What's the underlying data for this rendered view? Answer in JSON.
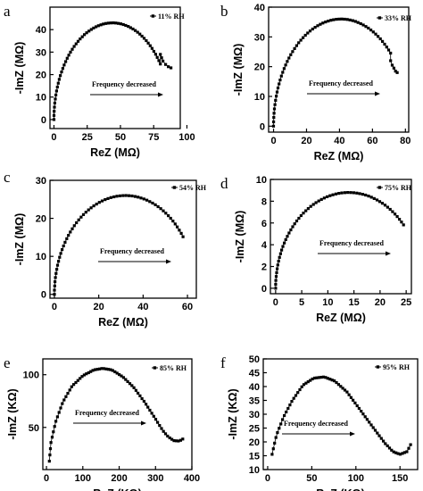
{
  "chart_data": [
    {
      "panel": "a",
      "type": "scatter",
      "legend": "11% RH",
      "xlabel": "ReZ (MΩ)",
      "ylabel": "-ImZ (MΩ)",
      "xticks": [
        0,
        25,
        50,
        75,
        100
      ],
      "yticks": [
        0,
        10,
        20,
        30,
        40
      ],
      "xlim": [
        -3,
        95
      ],
      "ylim": [
        -4,
        50
      ],
      "annotation": "Frequency decreased",
      "series": [
        {
          "name": "11% RH",
          "arc": {
            "center": 44,
            "radius": 44,
            "x_start": 0,
            "x_end": 80,
            "peak": 43
          },
          "tail": [
            [
              80,
              29
            ],
            [
              81,
              27.5
            ],
            [
              82,
              26
            ],
            [
              84,
              24.5
            ],
            [
              86,
              23.5
            ],
            [
              88,
              23
            ]
          ]
        }
      ]
    },
    {
      "panel": "b",
      "type": "scatter",
      "legend": "33% RH",
      "xlabel": "ReZ (MΩ)",
      "ylabel": "-ImZ (MΩ)",
      "xticks": [
        0,
        20,
        40,
        60,
        80
      ],
      "yticks": [
        0,
        10,
        20,
        30,
        40
      ],
      "xlim": [
        -3,
        82
      ],
      "ylim": [
        -2,
        40
      ],
      "annotation": "Frequency decreased",
      "series": [
        {
          "name": "33% RH",
          "arc": {
            "center": 41,
            "radius": 41,
            "x_start": 0,
            "x_end": 71,
            "peak": 36
          },
          "tail": [
            [
              71,
              22
            ],
            [
              72,
              20.5
            ],
            [
              73,
              19.5
            ],
            [
              74,
              18.5
            ],
            [
              75,
              18
            ]
          ]
        }
      ]
    },
    {
      "panel": "c",
      "type": "scatter",
      "legend": "54% RH",
      "xlabel": "ReZ (MΩ)",
      "ylabel": "-ImZ (MΩ)",
      "xticks": [
        0,
        20,
        40,
        60
      ],
      "yticks": [
        0,
        10,
        20,
        30
      ],
      "xlim": [
        -2,
        64
      ],
      "ylim": [
        -1,
        30
      ],
      "annotation": "Frequency decreased",
      "series": [
        {
          "name": "54% RH",
          "arc": {
            "center": 32,
            "radius": 32,
            "x_start": 0,
            "x_end": 58,
            "peak": 26
          },
          "tail": []
        }
      ]
    },
    {
      "panel": "d",
      "type": "scatter",
      "legend": "75% RH",
      "xlabel": "ReZ (MΩ)",
      "ylabel": "-ImZ (MΩ)",
      "xticks": [
        0,
        5,
        10,
        15,
        20,
        25
      ],
      "yticks": [
        0,
        2,
        4,
        6,
        8,
        10
      ],
      "xlim": [
        -1,
        26
      ],
      "ylim": [
        -0.5,
        10
      ],
      "annotation": "Frequency decreased",
      "series": [
        {
          "name": "75% RH",
          "arc": {
            "center": 14,
            "radius": 14,
            "x_start": 0,
            "x_end": 24.5,
            "peak": 8.8
          },
          "tail": []
        }
      ]
    },
    {
      "panel": "e",
      "type": "scatter",
      "legend": "85% RH",
      "xlabel": "ReZ (KΩ)",
      "ylabel": "-ImZ (KΩ)",
      "xticks": [
        0,
        100,
        200,
        300,
        400
      ],
      "yticks": [
        50,
        100
      ],
      "xlim": [
        -10,
        400
      ],
      "ylim": [
        10,
        115
      ],
      "annotation": "Frequency decreased",
      "series": [
        {
          "name": "85% RH",
          "points": [
            [
              8,
              18
            ],
            [
              12,
              35
            ],
            [
              25,
              55
            ],
            [
              45,
              74
            ],
            [
              70,
              89
            ],
            [
              100,
              99
            ],
            [
              130,
              104.5
            ],
            [
              155,
              106
            ],
            [
              180,
              104.5
            ],
            [
              210,
              98
            ],
            [
              240,
              88
            ],
            [
              270,
              74
            ],
            [
              300,
              58
            ],
            [
              320,
              47
            ],
            [
              335,
              41
            ],
            [
              350,
              37.5
            ],
            [
              365,
              37
            ],
            [
              375,
              39
            ]
          ]
        }
      ]
    },
    {
      "panel": "f",
      "type": "scatter",
      "legend": "95% RH",
      "xlabel": "ReZ (KΩ)",
      "ylabel": "-ImZ (KΩ)",
      "xticks": [
        0,
        50,
        100,
        150
      ],
      "yticks": [
        10,
        15,
        20,
        25,
        30,
        35,
        40,
        45,
        50
      ],
      "xlim": [
        -5,
        170
      ],
      "ylim": [
        10,
        50
      ],
      "annotation": "Frequency decreased",
      "series": [
        {
          "name": "95% RH",
          "points": [
            [
              5,
              15.5
            ],
            [
              10,
              22.5
            ],
            [
              18,
              29
            ],
            [
              28,
              35
            ],
            [
              40,
              40.5
            ],
            [
              52,
              43
            ],
            [
              64,
              43.5
            ],
            [
              76,
              42
            ],
            [
              90,
              38
            ],
            [
              105,
              31.5
            ],
            [
              120,
              25
            ],
            [
              133,
              19.5
            ],
            [
              142,
              16.5
            ],
            [
              150,
              15.5
            ],
            [
              158,
              16.5
            ],
            [
              162,
              19
            ]
          ]
        }
      ]
    }
  ]
}
